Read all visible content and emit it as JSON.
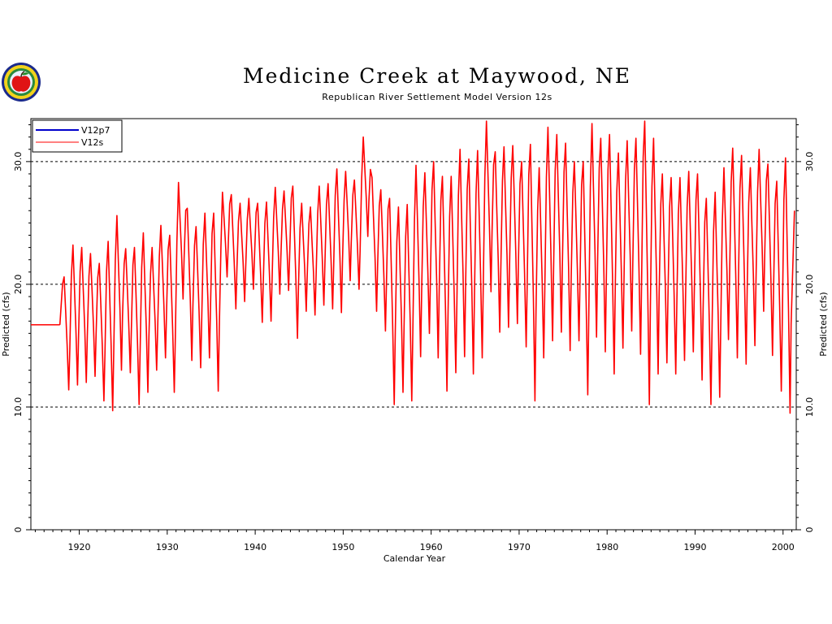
{
  "logo": {
    "icon": "apple-seal-icon"
  },
  "chart_data": {
    "type": "line",
    "title": "Medicine Creek at Maywood, NE",
    "subtitle": "Republican River Settlement Model Version 12s",
    "xlabel": "Calendar Year",
    "ylabel_left": "Predicted (cfs)",
    "ylabel_right": "Predicted (cfs)",
    "xlim": [
      1914.5,
      2001.5
    ],
    "ylim": [
      0,
      33.5
    ],
    "x_ticks": [
      1920,
      1930,
      1940,
      1950,
      1960,
      1970,
      1980,
      1990,
      2000
    ],
    "x_tick_labels": [
      "1920",
      "1930",
      "1940",
      "1950",
      "1960",
      "1970",
      "1980",
      "1990",
      "2000"
    ],
    "y_ticks": [
      0,
      10,
      20,
      30
    ],
    "y_tick_labels": [
      "0",
      "10.0",
      "20.0",
      "30.0"
    ],
    "gridlines_y": [
      10,
      20,
      30
    ],
    "grid": "dashed horizontal at 10, 20, 30",
    "legend_position": "top-left",
    "series": [
      {
        "name": "V12p7",
        "color": "#0000cc",
        "x": [],
        "y": []
      },
      {
        "name": "V12s",
        "color": "#ff0000",
        "constant_segment": {
          "x": [
            1914.5,
            1917.8
          ],
          "y": 16.7
        },
        "annual_peaks": [
          [
            1918,
            20.6
          ],
          [
            1919,
            23.2
          ],
          [
            1920,
            23.0
          ],
          [
            1921,
            22.5
          ],
          [
            1922,
            21.7
          ],
          [
            1923,
            23.5
          ],
          [
            1924,
            25.6
          ],
          [
            1925,
            22.9
          ],
          [
            1926,
            23.0
          ],
          [
            1927,
            24.2
          ],
          [
            1928,
            23.0
          ],
          [
            1929,
            24.8
          ],
          [
            1930,
            24.0
          ],
          [
            1931,
            28.3
          ],
          [
            1932,
            26.2
          ],
          [
            1933,
            24.7
          ],
          [
            1934,
            25.8
          ],
          [
            1935,
            25.8
          ],
          [
            1936,
            27.5
          ],
          [
            1937,
            27.3
          ],
          [
            1938,
            26.6
          ],
          [
            1939,
            27.0
          ],
          [
            1940,
            26.6
          ],
          [
            1941,
            26.7
          ],
          [
            1942,
            27.9
          ],
          [
            1943,
            27.6
          ],
          [
            1944,
            28.0
          ],
          [
            1945,
            26.6
          ],
          [
            1946,
            26.3
          ],
          [
            1947,
            28.0
          ],
          [
            1948,
            28.2
          ],
          [
            1949,
            29.4
          ],
          [
            1950,
            29.2
          ],
          [
            1951,
            28.5
          ],
          [
            1952,
            32.0
          ],
          [
            1953,
            28.7
          ],
          [
            1954,
            27.7
          ],
          [
            1955,
            27.0
          ],
          [
            1956,
            26.3
          ],
          [
            1957,
            26.5
          ],
          [
            1958,
            29.7
          ],
          [
            1959,
            29.1
          ],
          [
            1960,
            30.0
          ],
          [
            1961,
            28.8
          ],
          [
            1962,
            28.8
          ],
          [
            1963,
            31.0
          ],
          [
            1964,
            30.2
          ],
          [
            1965,
            30.9
          ],
          [
            1966,
            33.3
          ],
          [
            1967,
            30.8
          ],
          [
            1968,
            31.2
          ],
          [
            1969,
            31.3
          ],
          [
            1970,
            30.0
          ],
          [
            1971,
            31.4
          ],
          [
            1972,
            29.5
          ],
          [
            1973,
            32.8
          ],
          [
            1974,
            32.2
          ],
          [
            1975,
            31.5
          ],
          [
            1976,
            30.0
          ],
          [
            1977,
            30.0
          ],
          [
            1978,
            33.1
          ],
          [
            1979,
            31.9
          ],
          [
            1980,
            32.2
          ],
          [
            1981,
            30.7
          ],
          [
            1982,
            31.7
          ],
          [
            1983,
            31.9
          ],
          [
            1984,
            33.3
          ],
          [
            1985,
            31.9
          ],
          [
            1986,
            29.0
          ],
          [
            1987,
            28.7
          ],
          [
            1988,
            28.7
          ],
          [
            1989,
            29.2
          ],
          [
            1990,
            29.0
          ],
          [
            1991,
            27.0
          ],
          [
            1992,
            27.5
          ],
          [
            1993,
            29.5
          ],
          [
            1994,
            31.1
          ],
          [
            1995,
            30.5
          ],
          [
            1996,
            29.5
          ],
          [
            1997,
            31.0
          ],
          [
            1998,
            29.8
          ],
          [
            1999,
            28.4
          ],
          [
            2000,
            30.3
          ]
        ],
        "annual_troughs": [
          [
            1918,
            11.4
          ],
          [
            1919,
            11.8
          ],
          [
            1920,
            12.0
          ],
          [
            1921,
            12.5
          ],
          [
            1922,
            10.5
          ],
          [
            1923,
            9.7
          ],
          [
            1924,
            13.0
          ],
          [
            1925,
            12.8
          ],
          [
            1926,
            10.2
          ],
          [
            1927,
            11.2
          ],
          [
            1928,
            13.0
          ],
          [
            1929,
            14.0
          ],
          [
            1930,
            11.2
          ],
          [
            1931,
            18.8
          ],
          [
            1932,
            13.8
          ],
          [
            1933,
            13.2
          ],
          [
            1934,
            14.0
          ],
          [
            1935,
            11.3
          ],
          [
            1936,
            20.6
          ],
          [
            1937,
            18.0
          ],
          [
            1938,
            18.6
          ],
          [
            1939,
            19.6
          ],
          [
            1940,
            16.9
          ],
          [
            1941,
            17.0
          ],
          [
            1942,
            19.2
          ],
          [
            1943,
            19.5
          ],
          [
            1944,
            15.6
          ],
          [
            1945,
            17.8
          ],
          [
            1946,
            17.5
          ],
          [
            1947,
            18.3
          ],
          [
            1948,
            18.0
          ],
          [
            1949,
            17.7
          ],
          [
            1950,
            20.3
          ],
          [
            1951,
            19.6
          ],
          [
            1952,
            23.9
          ],
          [
            1953,
            17.8
          ],
          [
            1954,
            16.2
          ],
          [
            1955,
            10.2
          ],
          [
            1956,
            11.2
          ],
          [
            1957,
            10.5
          ],
          [
            1958,
            14.1
          ],
          [
            1959,
            16.0
          ],
          [
            1960,
            14.0
          ],
          [
            1961,
            11.3
          ],
          [
            1962,
            12.8
          ],
          [
            1963,
            14.1
          ],
          [
            1964,
            12.7
          ],
          [
            1965,
            14.0
          ],
          [
            1966,
            19.4
          ],
          [
            1967,
            16.1
          ],
          [
            1968,
            16.5
          ],
          [
            1969,
            16.8
          ],
          [
            1970,
            14.9
          ],
          [
            1971,
            10.5
          ],
          [
            1972,
            14.0
          ],
          [
            1973,
            15.4
          ],
          [
            1974,
            16.1
          ],
          [
            1975,
            14.6
          ],
          [
            1976,
            15.4
          ],
          [
            1977,
            11.0
          ],
          [
            1978,
            15.7
          ],
          [
            1979,
            14.5
          ],
          [
            1980,
            12.7
          ],
          [
            1981,
            14.8
          ],
          [
            1982,
            16.2
          ],
          [
            1983,
            14.3
          ],
          [
            1984,
            10.2
          ],
          [
            1985,
            12.7
          ],
          [
            1986,
            13.6
          ],
          [
            1987,
            12.7
          ],
          [
            1988,
            13.8
          ],
          [
            1989,
            14.5
          ],
          [
            1990,
            12.2
          ],
          [
            1991,
            10.2
          ],
          [
            1992,
            10.8
          ],
          [
            1993,
            15.5
          ],
          [
            1994,
            14.0
          ],
          [
            1995,
            13.5
          ],
          [
            1996,
            15.0
          ],
          [
            1997,
            17.8
          ],
          [
            1998,
            14.2
          ],
          [
            1999,
            11.3
          ],
          [
            2000,
            9.5
          ]
        ],
        "end_value": [
          2001.3,
          26.0
        ]
      }
    ]
  }
}
